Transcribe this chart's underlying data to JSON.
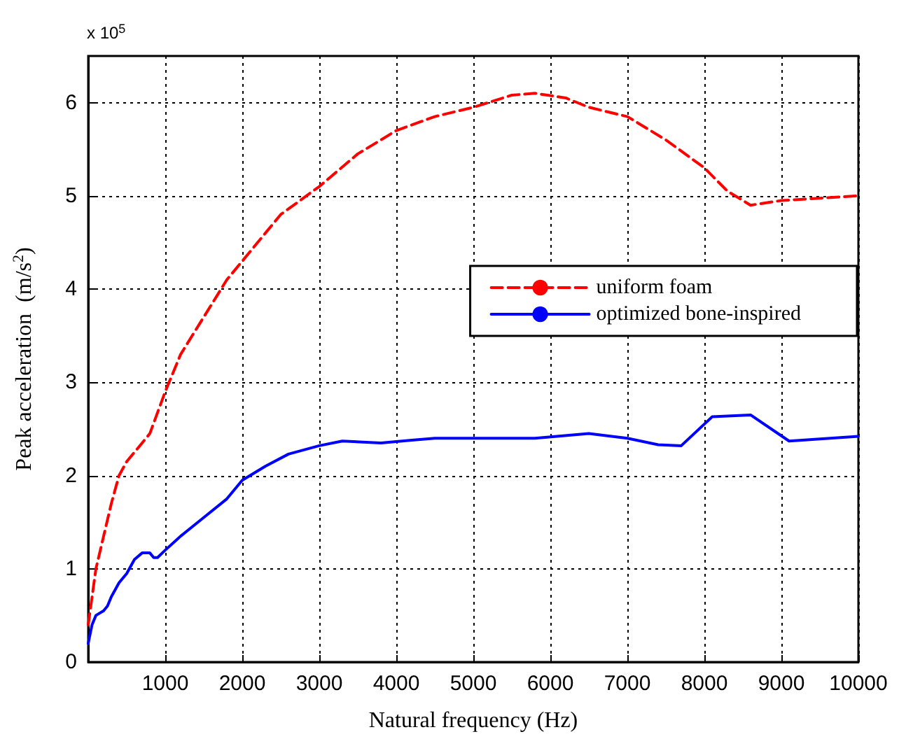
{
  "chart_data": {
    "type": "line",
    "xlabel": "Natural frequency (Hz)",
    "ylabel": "Peak acceleration  (m/s$^{2}$)",
    "annotations": [
      "x 10$^{5}$"
    ],
    "xlim": [
      0,
      10000
    ],
    "xticks": [
      1000,
      2000,
      3000,
      4000,
      5000,
      6000,
      7000,
      8000,
      9000,
      10000
    ],
    "ylim": [
      0,
      6.5
    ],
    "yticks": [
      0,
      1,
      2,
      3,
      4,
      5,
      6
    ],
    "grid": true,
    "legend": "right",
    "marker": "none",
    "series": [
      {
        "name": "uniform foam",
        "color": "#ff0000",
        "line_style": "dashed",
        "x": [
          0,
          100,
          200,
          300,
          400,
          500,
          700,
          800,
          1000,
          1200,
          1500,
          1800,
          2000,
          2300,
          2500,
          3000,
          3500,
          4000,
          4500,
          5000,
          5500,
          5800,
          6200,
          6500,
          7000,
          7500,
          8000,
          8300,
          8600,
          9000,
          10000
        ],
        "values": [
          0.4,
          1.0,
          1.35,
          1.7,
          2.0,
          2.15,
          2.35,
          2.45,
          2.9,
          3.3,
          3.7,
          4.1,
          4.3,
          4.6,
          4.8,
          5.1,
          5.45,
          5.7,
          5.85,
          5.95,
          6.08,
          6.1,
          6.05,
          5.95,
          5.85,
          5.6,
          5.3,
          5.05,
          4.9,
          4.95,
          5.0
        ]
      },
      {
        "name": "optimized bone-inspired",
        "color": "#0000ff",
        "line_style": "solid",
        "x": [
          0,
          50,
          100,
          200,
          250,
          300,
          400,
          500,
          600,
          700,
          800,
          850,
          900,
          1000,
          1200,
          1500,
          1800,
          2000,
          2300,
          2600,
          3000,
          3300,
          3800,
          4200,
          4500,
          5000,
          5800,
          6500,
          7000,
          7400,
          7700,
          8100,
          8600,
          9100,
          10000
        ],
        "values": [
          0.2,
          0.4,
          0.5,
          0.55,
          0.6,
          0.7,
          0.85,
          0.95,
          1.1,
          1.17,
          1.17,
          1.12,
          1.12,
          1.2,
          1.35,
          1.55,
          1.75,
          1.95,
          2.1,
          2.23,
          2.32,
          2.37,
          2.35,
          2.38,
          2.4,
          2.4,
          2.4,
          2.45,
          2.4,
          2.33,
          2.32,
          2.63,
          2.65,
          2.37,
          2.42
        ]
      }
    ]
  }
}
